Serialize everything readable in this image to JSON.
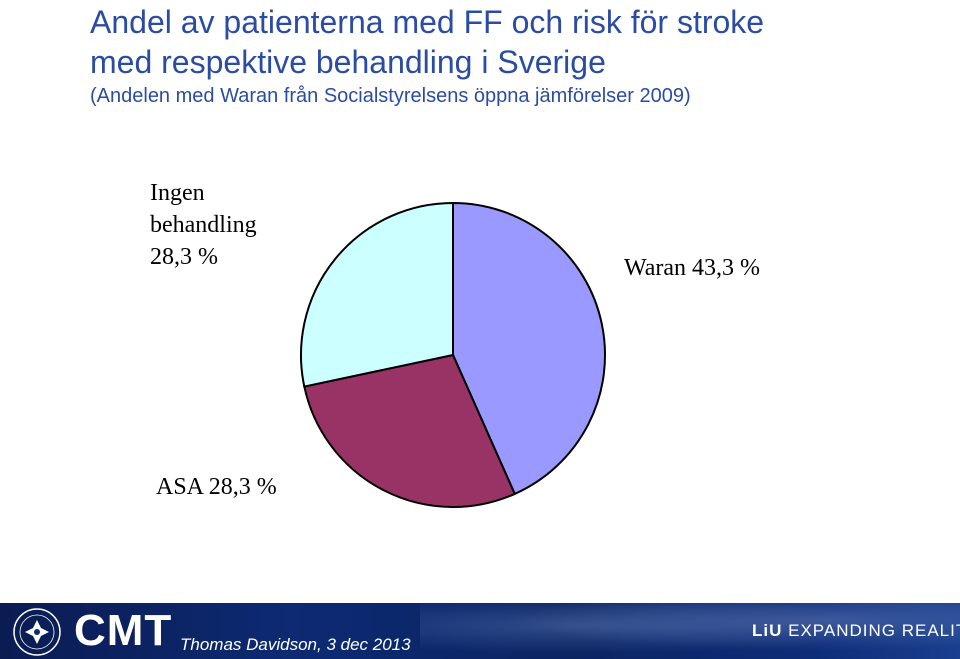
{
  "title": {
    "line1": "Andel av patienterna med FF och risk för stroke",
    "line2": "med respektive behandling i Sverige",
    "subtitle": "(Andelen med Waran från Socialstyrelsens öppna jämförelser 2009)"
  },
  "chart_data": {
    "type": "pie",
    "title": "Andel av patienterna med FF och risk för stroke med respektive behandling i Sverige",
    "slices": [
      {
        "label": "Waran 43,3 %",
        "value": 43.3,
        "color": "#9999ff"
      },
      {
        "label": "ASA 28,3 %",
        "value": 28.3,
        "color": "#993366"
      },
      {
        "label": "Ingen behandling 28,3 %",
        "value": 28.3,
        "color": "#ccffff"
      }
    ],
    "start_angle_deg": 0,
    "direction": "clockwise"
  },
  "labels": {
    "ingen_line1": "Ingen",
    "ingen_line2": "behandling",
    "ingen_line3": "28,3 %",
    "waran": "Waran 43,3 %",
    "asa": "ASA 28,3 %"
  },
  "footer": {
    "logo_text": "CMT",
    "credit": "Thomas Davidson, 3 dec 2013",
    "liu_prefix": "LiU",
    "liu_tagline": "EXPANDING REALITY",
    "seal_icon": "linkoping-university-seal-icon",
    "bg_color": "#0d2a72"
  }
}
